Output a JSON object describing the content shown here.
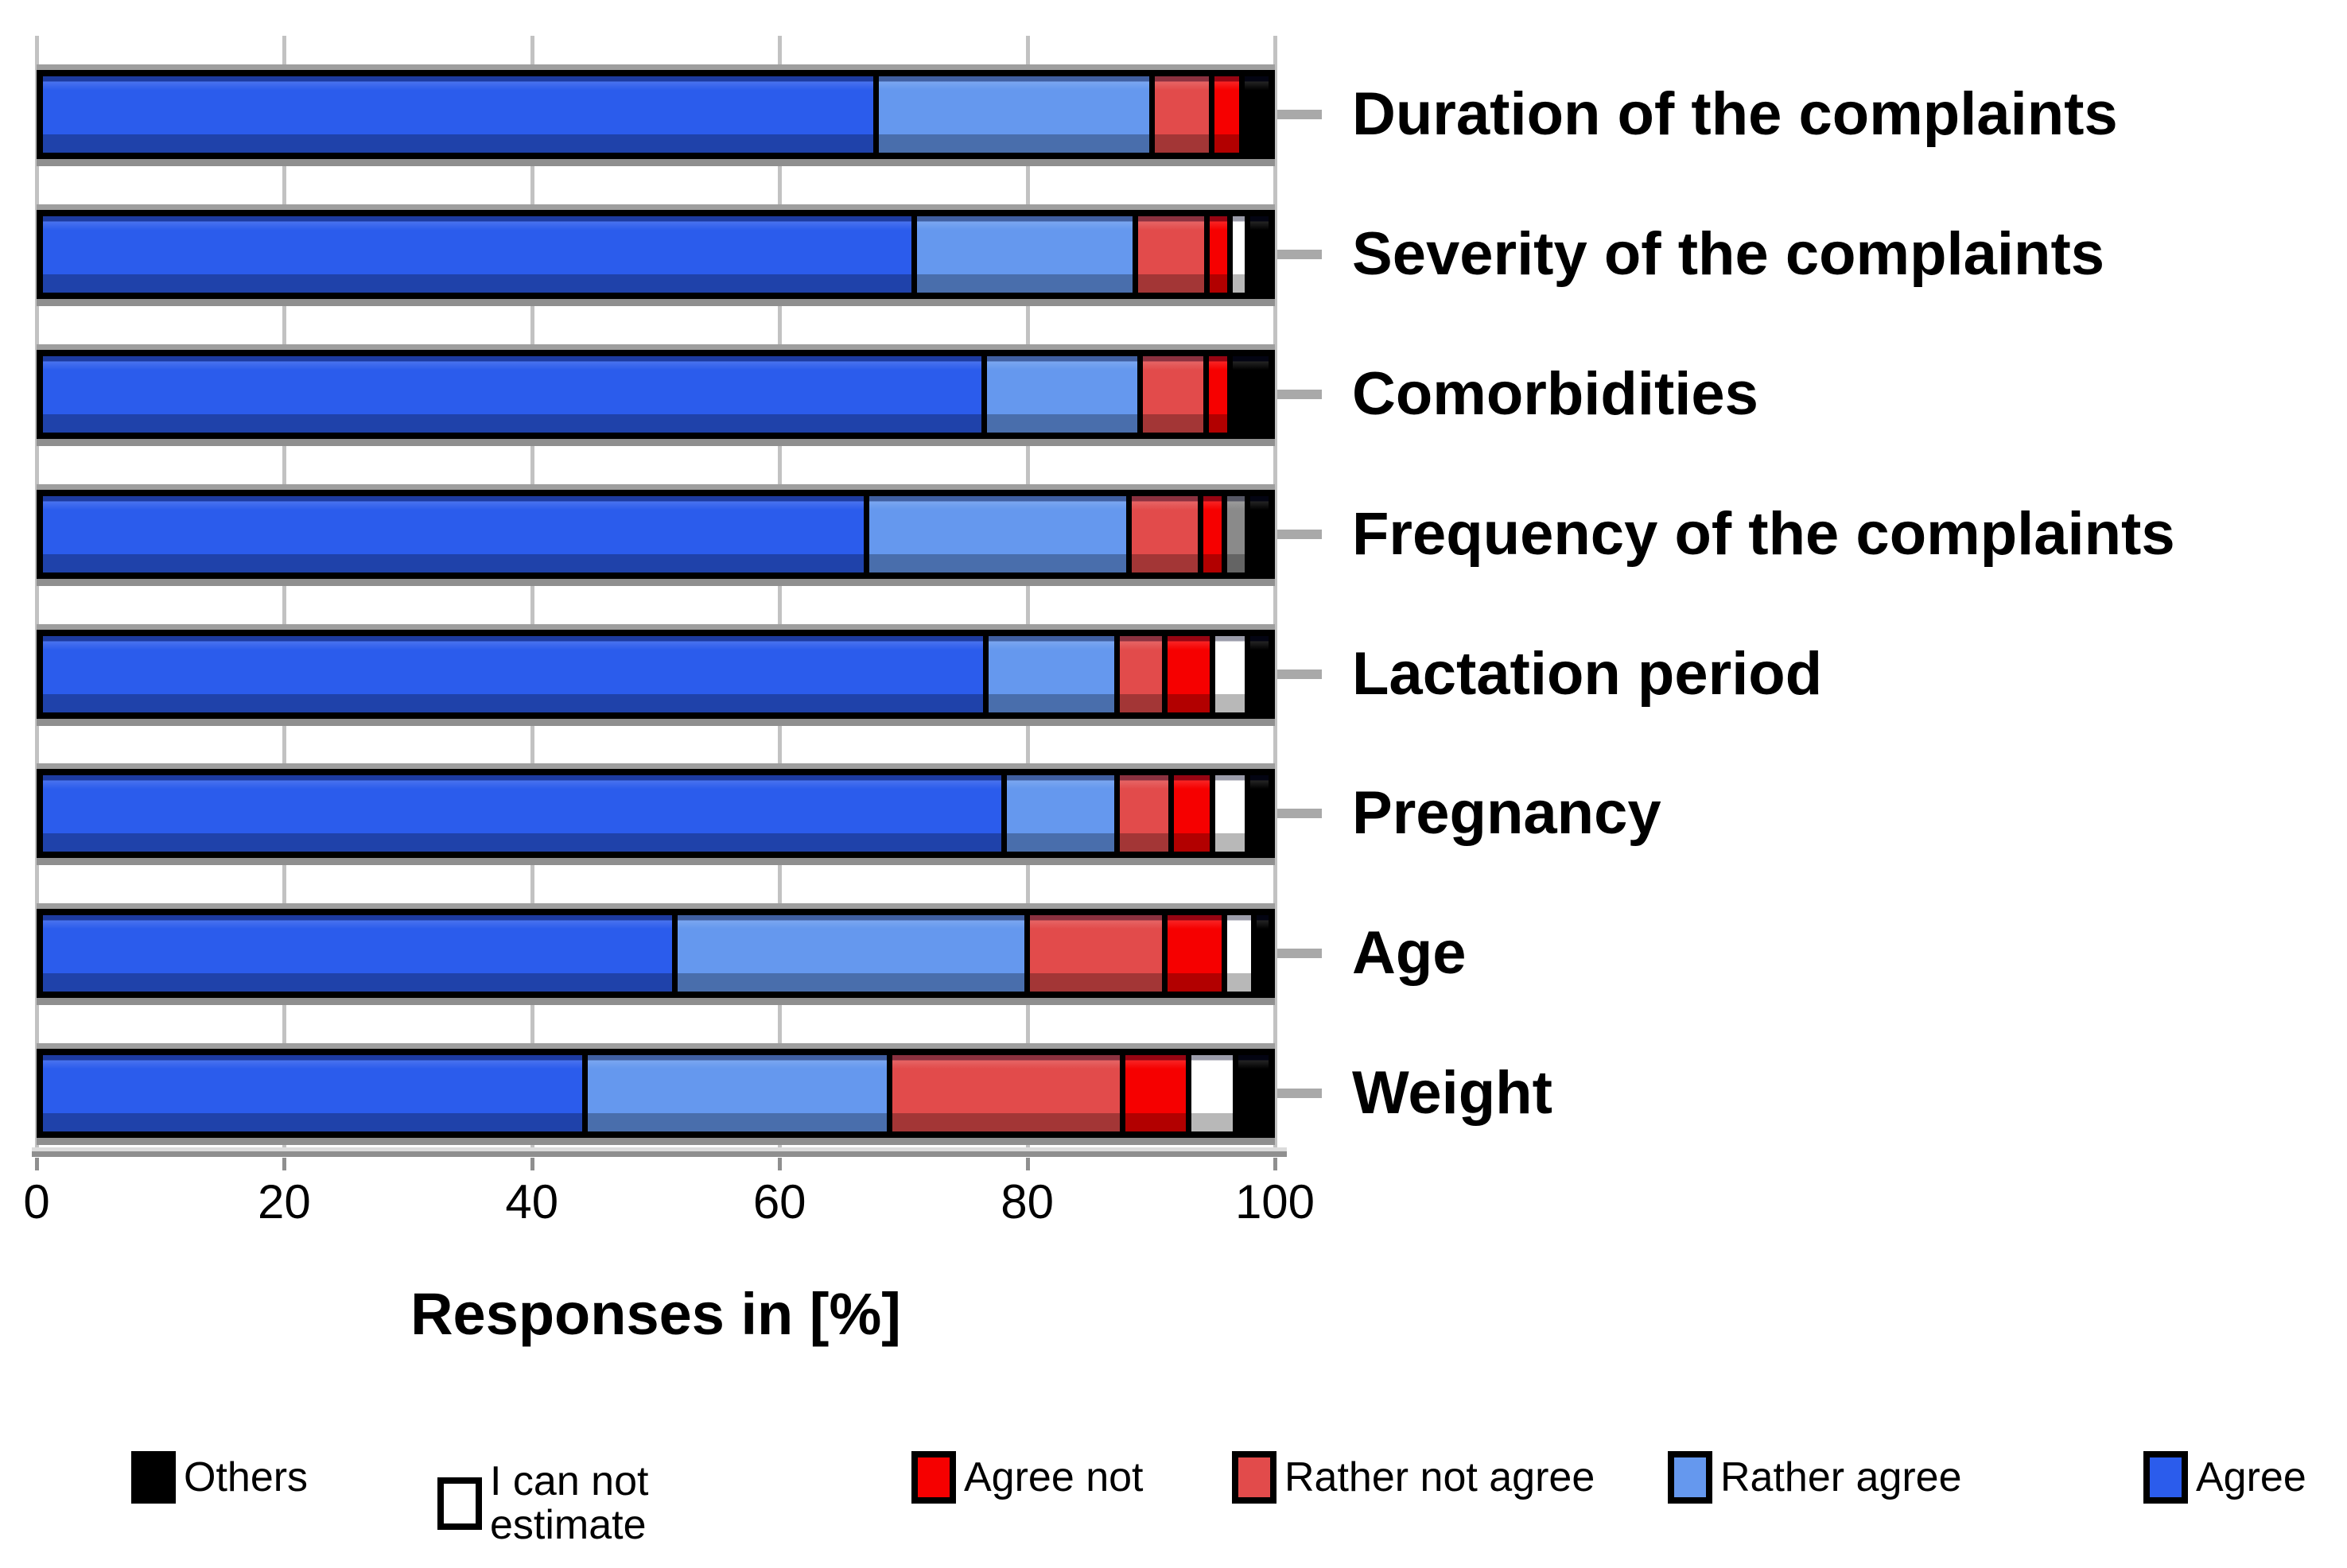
{
  "chart_data": {
    "type": "bar",
    "orientation": "horizontal",
    "stacked": true,
    "title": "",
    "xlabel": "Responses in [%]",
    "ylabel": "",
    "xlim": [
      0,
      100
    ],
    "x_ticks": [
      0,
      20,
      40,
      60,
      80,
      100
    ],
    "grid": "vertical",
    "legend_position": "bottom",
    "categories": [
      "Duration of the complaints",
      "Severity of the complaints",
      "Comorbidities",
      "Frequency of the complaints",
      "Lactation period",
      "Pregnancy",
      "Age",
      "Weight"
    ],
    "series": [
      {
        "name": "Agree",
        "color": "#2B5CEC",
        "values": [
          69,
          72.5,
          78,
          68.5,
          78.5,
          80,
          52.5,
          45
        ]
      },
      {
        "name": "Rather agree",
        "color": "#6598EE",
        "values": [
          22.5,
          18,
          12.5,
          21.5,
          10.5,
          9,
          29,
          25
        ]
      },
      {
        "name": "Rather not agree",
        "color": "#E24B4B",
        "values": [
          4.5,
          5.5,
          5,
          5.5,
          3.5,
          4,
          11,
          19
        ]
      },
      {
        "name": "Agree not",
        "color": "#F60000",
        "values": [
          2,
          1.5,
          1.5,
          1.5,
          3.5,
          3,
          4.5,
          5
        ]
      },
      {
        "name": "I can not estimate",
        "color": "#FFFFFF",
        "values": [
          0,
          1,
          0,
          1.5,
          2.5,
          2.5,
          2,
          3.5
        ]
      },
      {
        "name": "Others",
        "color": "#000000",
        "values": [
          2,
          1.5,
          3,
          1.5,
          1.5,
          1.5,
          1,
          2.5
        ]
      }
    ],
    "segment_color_overrides": [
      {
        "category": "Frequency of the complaints",
        "series": "I can not estimate",
        "color": "#8a8a8a"
      }
    ],
    "legend_order": [
      "Others",
      "I can not estimate",
      "Agree not",
      "Rather not agree",
      "Rather agree",
      "Agree"
    ]
  },
  "colors": {
    "background": "#ffffff",
    "gridline": "#c2c2c2",
    "axis_line": "#8f8f8f",
    "bar_frame": "#000000",
    "bar_shadow": "#8f8f8f",
    "leader_dash": "#a9a9a9",
    "text": "#000000"
  }
}
